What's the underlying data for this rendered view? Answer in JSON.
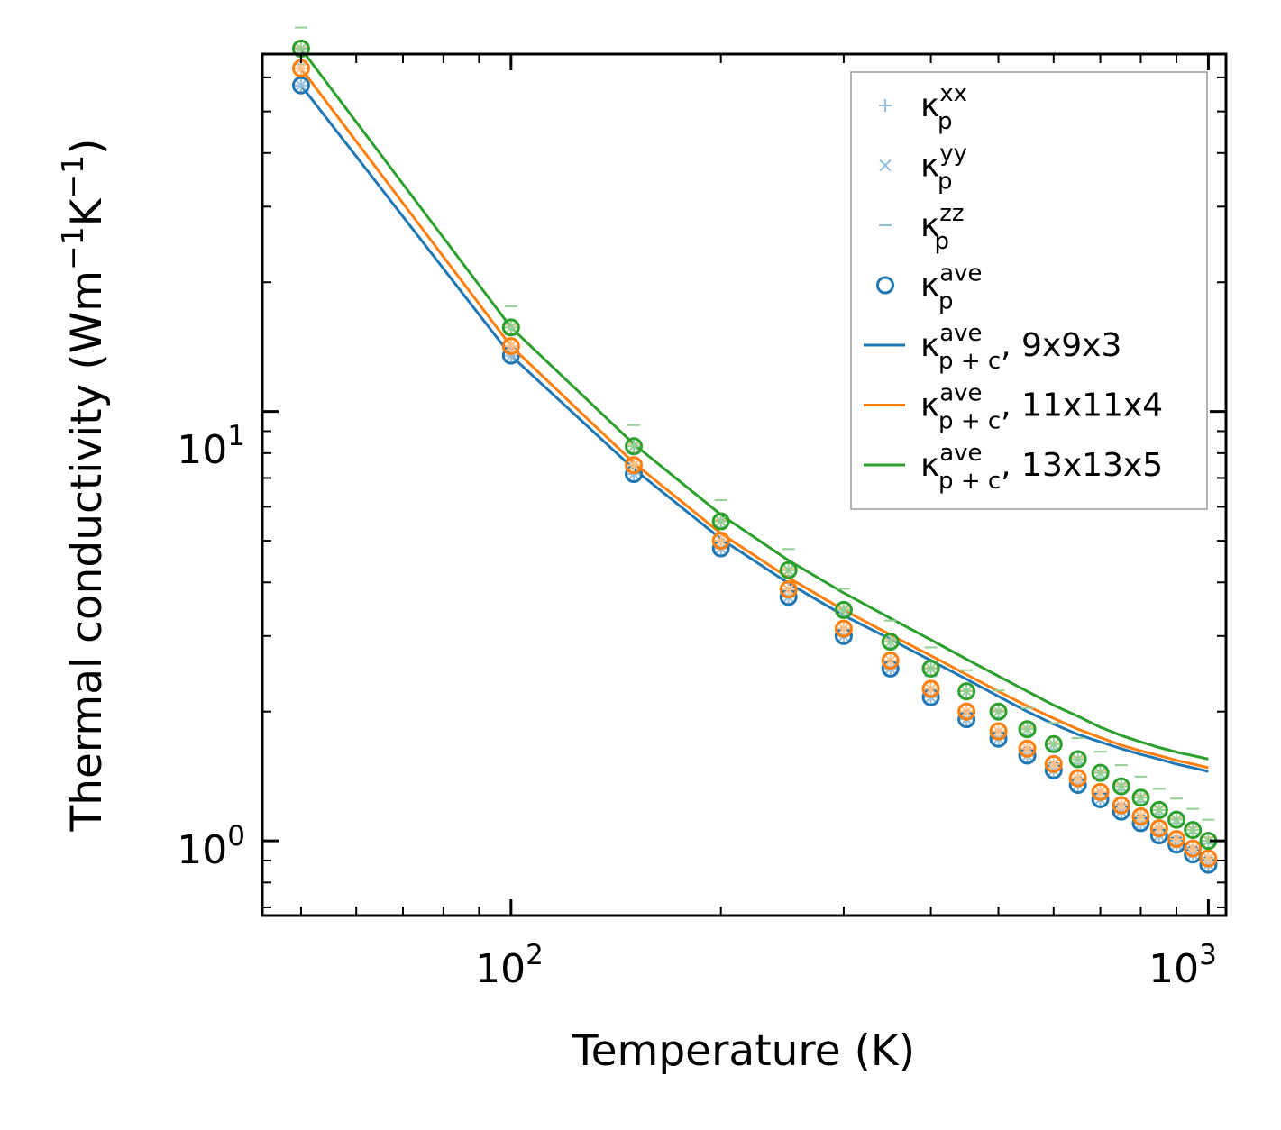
{
  "chart_data": {
    "type": "scatter",
    "title": "",
    "xlabel": "Temperature (K)",
    "ylabel": "Thermal conductivity (Wm",
    "ylabel_sup1": "−1",
    "ylabel_mid": "K",
    "ylabel_sup2": "−1",
    "ylabel_end": ")",
    "xscale": "log",
    "yscale": "log",
    "xlim": [
      44,
      1060
    ],
    "ylim": [
      0.67,
      68
    ],
    "x_ticks": [
      {
        "base": "10",
        "exp": "2",
        "value": 100
      },
      {
        "base": "10",
        "exp": "3",
        "value": 1000
      }
    ],
    "y_ticks": [
      {
        "base": "10",
        "exp": "0",
        "value": 1
      },
      {
        "base": "10",
        "exp": "1",
        "value": 10
      }
    ],
    "legend_position": "top-right",
    "legend": [
      {
        "symbol": "κ",
        "sub": "p",
        "sup": "xx",
        "suffix": "",
        "marker": "plus",
        "color": "#94bfdd"
      },
      {
        "symbol": "κ",
        "sub": "p",
        "sup": "yy",
        "suffix": "",
        "marker": "cross",
        "color": "#94bfdd"
      },
      {
        "symbol": "κ",
        "sub": "p",
        "sup": "zz",
        "suffix": "",
        "marker": "dash",
        "color": "#94bfdd"
      },
      {
        "symbol": "κ",
        "sub": "p",
        "sup": "ave",
        "suffix": "",
        "marker": "circle",
        "color": "#1f77b4"
      },
      {
        "symbol": "κ",
        "sub": "p + c",
        "sup": "ave",
        "suffix": ", 9x9x3",
        "marker": "line",
        "color": "#1f77b4"
      },
      {
        "symbol": "κ",
        "sub": "p + c",
        "sup": "ave",
        "suffix": ", 11x11x4",
        "marker": "line",
        "color": "#ff7f0e"
      },
      {
        "symbol": "κ",
        "sub": "p + c",
        "sup": "ave",
        "suffix": ", 13x13x5",
        "marker": "line",
        "color": "#2ca02c"
      }
    ],
    "x": [
      50,
      100,
      150,
      200,
      250,
      300,
      350,
      400,
      450,
      500,
      550,
      600,
      650,
      700,
      750,
      800,
      850,
      900,
      950,
      1000
    ],
    "series": [
      {
        "name": "9x9x3",
        "color": "#1f77b4",
        "kappa_p_ave": [
          57.5,
          13.5,
          7.15,
          4.8,
          3.7,
          3.0,
          2.52,
          2.16,
          1.92,
          1.73,
          1.58,
          1.46,
          1.35,
          1.25,
          1.17,
          1.1,
          1.03,
          0.98,
          0.93,
          0.88
        ],
        "kappa_pc_ave": [
          57.5,
          13.5,
          7.35,
          5.05,
          3.98,
          3.35,
          2.95,
          2.63,
          2.38,
          2.17,
          2.0,
          1.87,
          1.77,
          1.7,
          1.64,
          1.59,
          1.55,
          1.51,
          1.48,
          1.45
        ]
      },
      {
        "name": "11x11x4",
        "color": "#ff7f0e",
        "kappa_p_ave": [
          63.0,
          14.2,
          7.5,
          5.0,
          3.85,
          3.12,
          2.63,
          2.26,
          2.0,
          1.8,
          1.64,
          1.51,
          1.4,
          1.3,
          1.21,
          1.14,
          1.07,
          1.01,
          0.96,
          0.91
        ],
        "kappa_pc_ave": [
          63.0,
          14.2,
          7.6,
          5.2,
          4.1,
          3.45,
          3.02,
          2.7,
          2.44,
          2.23,
          2.06,
          1.93,
          1.82,
          1.74,
          1.67,
          1.62,
          1.58,
          1.54,
          1.51,
          1.48
        ]
      },
      {
        "name": "13x13x5",
        "color": "#2ca02c",
        "kappa_p_ave": [
          70.0,
          15.7,
          8.3,
          5.55,
          4.27,
          3.45,
          2.91,
          2.52,
          2.23,
          2.0,
          1.82,
          1.68,
          1.55,
          1.44,
          1.34,
          1.26,
          1.18,
          1.12,
          1.06,
          1.0
        ],
        "kappa_pc_ave": [
          70.0,
          15.7,
          8.4,
          5.75,
          4.5,
          3.78,
          3.3,
          2.94,
          2.65,
          2.42,
          2.23,
          2.07,
          1.95,
          1.84,
          1.76,
          1.7,
          1.65,
          1.61,
          1.58,
          1.55
        ]
      }
    ]
  }
}
